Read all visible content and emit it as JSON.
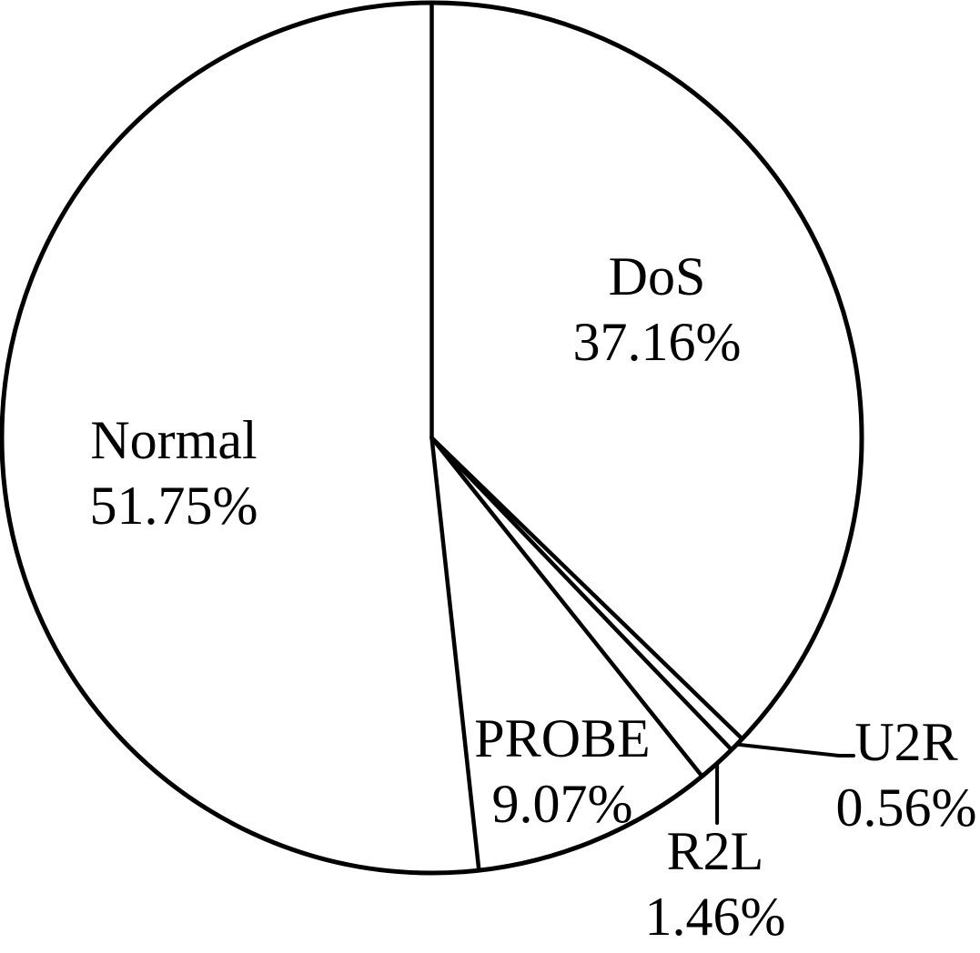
{
  "chart_data": {
    "type": "pie",
    "title": "",
    "total": 100,
    "start_angle_deg": 0,
    "direction": "clockwise",
    "fill_color": "#ffffff",
    "stroke_color": "#000000",
    "legend": "none",
    "slices": [
      {
        "label": "DoS",
        "value": 37.16,
        "pct_label": "37.16%",
        "label_placement": "inside"
      },
      {
        "label": "U2R",
        "value": 0.56,
        "pct_label": "0.56%",
        "label_placement": "outside-leader"
      },
      {
        "label": "R2L",
        "value": 1.46,
        "pct_label": "1.46%",
        "label_placement": "outside-leader"
      },
      {
        "label": "PROBE",
        "value": 9.07,
        "pct_label": "9.07%",
        "label_placement": "inside"
      },
      {
        "label": "Normal",
        "value": 51.75,
        "pct_label": "51.75%",
        "label_placement": "inside"
      }
    ]
  }
}
